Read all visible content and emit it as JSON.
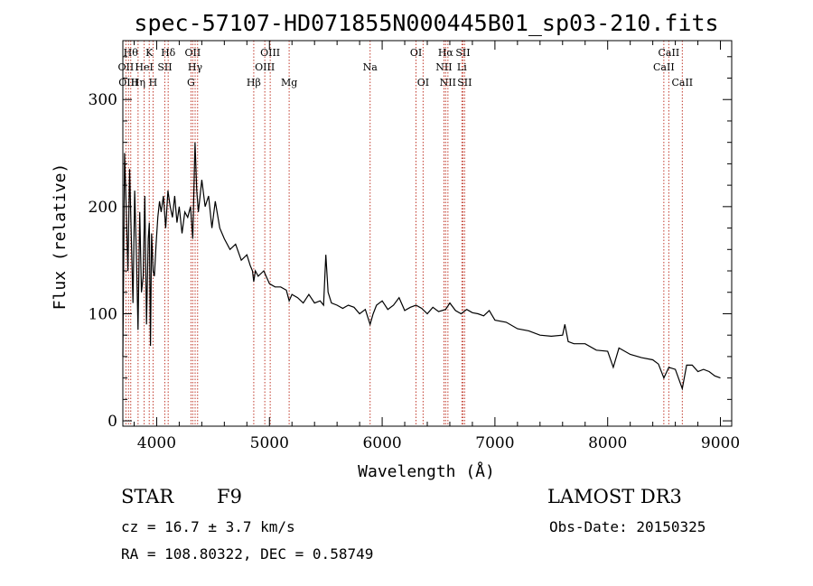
{
  "chart_data": {
    "type": "line",
    "title": "spec-57107-HD071855N000445B01_sp03-210.fits",
    "xlabel": "Wavelength (Å)",
    "ylabel": "Flux (relative)",
    "xlim": [
      3700,
      9100
    ],
    "ylim": [
      -5,
      355
    ],
    "xticks": [
      4000,
      5000,
      6000,
      7000,
      8000,
      9000
    ],
    "yticks": [
      0,
      100,
      200,
      300
    ],
    "series": [
      {
        "name": "flux",
        "x": [
          3700,
          3715,
          3730,
          3745,
          3760,
          3775,
          3790,
          3805,
          3820,
          3835,
          3850,
          3865,
          3880,
          3895,
          3910,
          3925,
          3935,
          3945,
          3955,
          3968,
          3980,
          3995,
          4010,
          4025,
          4040,
          4060,
          4080,
          4100,
          4120,
          4140,
          4160,
          4180,
          4200,
          4225,
          4250,
          4275,
          4300,
          4320,
          4340,
          4355,
          4370,
          4385,
          4400,
          4430,
          4460,
          4490,
          4520,
          4560,
          4600,
          4650,
          4700,
          4750,
          4800,
          4830,
          4850,
          4861,
          4875,
          4900,
          4950,
          5000,
          5050,
          5100,
          5150,
          5175,
          5200,
          5250,
          5300,
          5350,
          5400,
          5450,
          5480,
          5500,
          5520,
          5550,
          5600,
          5650,
          5700,
          5750,
          5800,
          5850,
          5893,
          5920,
          5950,
          6000,
          6050,
          6100,
          6150,
          6200,
          6250,
          6300,
          6350,
          6400,
          6450,
          6500,
          6563,
          6600,
          6650,
          6700,
          6750,
          6800,
          6850,
          6900,
          6950,
          7000,
          7100,
          7200,
          7300,
          7400,
          7500,
          7600,
          7620,
          7650,
          7700,
          7800,
          7900,
          8000,
          8050,
          8100,
          8200,
          8300,
          8400,
          8450,
          8498,
          8542,
          8600,
          8662,
          8700,
          8750,
          8800,
          8850,
          8900,
          8950,
          9000
        ],
        "values": [
          60,
          250,
          200,
          140,
          235,
          170,
          110,
          215,
          155,
          85,
          195,
          120,
          135,
          210,
          90,
          170,
          185,
          70,
          175,
          140,
          135,
          165,
          190,
          205,
          195,
          210,
          180,
          215,
          200,
          190,
          210,
          185,
          200,
          175,
          195,
          190,
          200,
          170,
          260,
          215,
          195,
          210,
          225,
          200,
          210,
          180,
          205,
          180,
          170,
          160,
          165,
          150,
          155,
          145,
          140,
          130,
          140,
          135,
          140,
          128,
          125,
          125,
          122,
          112,
          118,
          115,
          110,
          118,
          110,
          112,
          108,
          155,
          120,
          110,
          108,
          105,
          108,
          106,
          100,
          104,
          90,
          100,
          108,
          112,
          104,
          108,
          115,
          103,
          106,
          108,
          105,
          100,
          106,
          102,
          104,
          110,
          103,
          100,
          104,
          101,
          100,
          98,
          103,
          94,
          92,
          86,
          84,
          80,
          79,
          80,
          90,
          74,
          72,
          72,
          66,
          65,
          50,
          68,
          62,
          59,
          57,
          53,
          40,
          50,
          48,
          30,
          52,
          52,
          46,
          48,
          46,
          42,
          40
        ]
      }
    ],
    "lines": [
      {
        "wl": 3727,
        "labels": [
          "OII"
        ],
        "row": 2
      },
      {
        "wl": 3750,
        "labels": [
          "OIII"
        ],
        "row": 3
      },
      {
        "wl": 3770,
        "labels": [
          "Hθ"
        ],
        "row": 1
      },
      {
        "wl": 3835,
        "labels": [
          "Hη"
        ],
        "row": 3
      },
      {
        "wl": 3889,
        "labels": [
          "HeI"
        ],
        "row": 2
      },
      {
        "wl": 3934,
        "labels": [
          "K"
        ],
        "row": 1
      },
      {
        "wl": 3968,
        "labels": [
          "H"
        ],
        "row": 3
      },
      {
        "wl": 4072,
        "labels": [
          "SII"
        ],
        "row": 2
      },
      {
        "wl": 4102,
        "labels": [
          "Hδ"
        ],
        "row": 1
      },
      {
        "wl": 4304,
        "labels": [
          "G"
        ],
        "row": 3
      },
      {
        "wl": 4320,
        "labels": [
          "OII"
        ],
        "row": 1
      },
      {
        "wl": 4341,
        "labels": [
          "Hγ"
        ],
        "row": 2
      },
      {
        "wl": 4363,
        "labels": [],
        "row": 0
      },
      {
        "wl": 4861,
        "labels": [
          "Hβ"
        ],
        "row": 3
      },
      {
        "wl": 4959,
        "labels": [
          "OIII"
        ],
        "row": 2
      },
      {
        "wl": 5007,
        "labels": [
          "OIII"
        ],
        "row": 1
      },
      {
        "wl": 5175,
        "labels": [
          "Mg"
        ],
        "row": 3
      },
      {
        "wl": 5893,
        "labels": [
          "Na"
        ],
        "row": 2
      },
      {
        "wl": 6300,
        "labels": [
          "OI"
        ],
        "row": 1
      },
      {
        "wl": 6363,
        "labels": [
          "OI"
        ],
        "row": 3
      },
      {
        "wl": 6548,
        "labels": [
          "NII"
        ],
        "row": 2
      },
      {
        "wl": 6563,
        "labels": [
          "Hα"
        ],
        "row": 1
      },
      {
        "wl": 6583,
        "labels": [
          "NII"
        ],
        "row": 3
      },
      {
        "wl": 6707,
        "labels": [
          "Li"
        ],
        "row": 2
      },
      {
        "wl": 6716,
        "labels": [
          "SII"
        ],
        "row": 1
      },
      {
        "wl": 6731,
        "labels": [
          "SII"
        ],
        "row": 3
      },
      {
        "wl": 8498,
        "labels": [
          "CaII"
        ],
        "row": 2
      },
      {
        "wl": 8542,
        "labels": [
          "CaII"
        ],
        "row": 1
      },
      {
        "wl": 8662,
        "labels": [
          "CaII"
        ],
        "row": 3
      }
    ],
    "line_color": "#c0392b"
  },
  "info": {
    "class": "STAR",
    "subclass": "F9",
    "survey": "LAMOST DR3",
    "cz": "cz = 16.7 ± 3.7 km/s",
    "obs_date": "Obs-Date: 20150325",
    "radec": "RA = 108.80322, DEC =    0.58749"
  }
}
